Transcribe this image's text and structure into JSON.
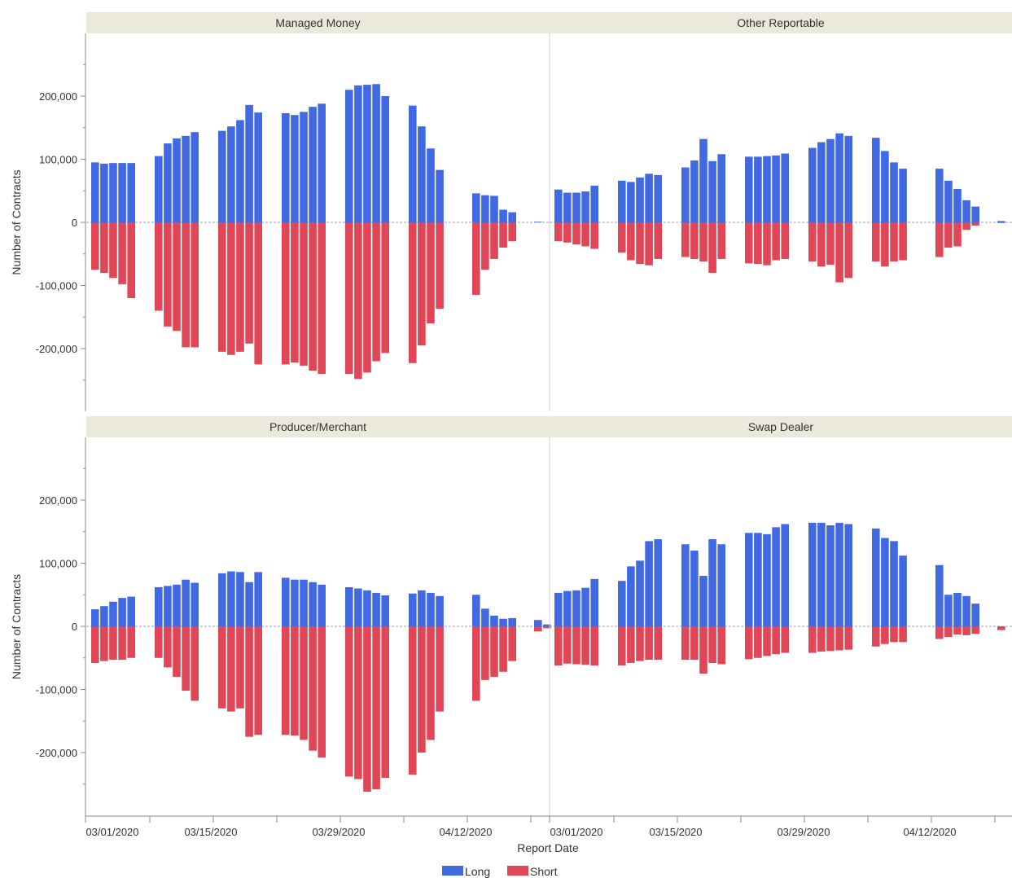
{
  "chart_data": {
    "type": "bar",
    "xlabel": "Report Date",
    "ylabel": "Number of Contracts",
    "ylim": [
      -300000,
      300000
    ],
    "y_ticks": [
      200000,
      100000,
      0,
      -100000,
      -200000
    ],
    "y_tick_labels": [
      "200,000",
      "100,000",
      "0",
      "-100,000",
      "-200,000"
    ],
    "x_tick_labels": [
      "03/01/2020",
      "03/15/2020",
      "03/29/2020",
      "04/12/2020"
    ],
    "legend": {
      "placement": "bottom-center",
      "entries": [
        "Long",
        "Short"
      ]
    },
    "colors": {
      "Long": "#4169e1",
      "Short": "#e04656",
      "header": "#ebe8dc",
      "zero_line": "#9aa0aa"
    },
    "panels": [
      {
        "title": "Managed Money",
        "groups": [
          {
            "long": [
              95000,
              93000,
              94000,
              94000,
              94000
            ],
            "short": [
              -75000,
              -80000,
              -88000,
              -98000,
              -120000
            ]
          },
          {
            "long": [
              105000,
              125000,
              133000,
              137000,
              143000
            ],
            "short": [
              -140000,
              -165000,
              -172000,
              -198000,
              -198000
            ]
          },
          {
            "long": [
              145000,
              152000,
              162000,
              186000,
              174000
            ],
            "short": [
              -205000,
              -210000,
              -205000,
              -192000,
              -225000
            ]
          },
          {
            "long": [
              173000,
              170000,
              175000,
              183000,
              188000
            ],
            "short": [
              -225000,
              -222000,
              -227000,
              -235000,
              -240000
            ]
          },
          {
            "long": [
              210000,
              217000,
              218000,
              219000,
              200000
            ],
            "short": [
              -240000,
              -248000,
              -238000,
              -220000,
              -207000
            ]
          },
          {
            "long": [
              185000,
              152000,
              117000,
              83000
            ],
            "short": [
              -223000,
              -195000,
              -160000,
              -137000
            ]
          },
          {
            "long": [
              46000,
              43000,
              42000,
              20000,
              16000
            ],
            "short": [
              -115000,
              -75000,
              -58000,
              -40000,
              -30000
            ]
          },
          {
            "long": [
              1000
            ],
            "short": [
              0
            ]
          }
        ]
      },
      {
        "title": "Other Reportable",
        "groups": [
          {
            "long": [
              52000,
              47000,
              47000,
              49000,
              58000
            ],
            "short": [
              -30000,
              -32000,
              -35000,
              -38000,
              -42000
            ]
          },
          {
            "long": [
              66000,
              64000,
              71000,
              77000,
              75000
            ],
            "short": [
              -48000,
              -60000,
              -66000,
              -68000,
              -58000
            ]
          },
          {
            "long": [
              87000,
              98000,
              132000,
              97000,
              108000
            ],
            "short": [
              -55000,
              -58000,
              -62000,
              -80000,
              -58000
            ]
          },
          {
            "long": [
              104000,
              104000,
              105000,
              106000,
              109000
            ],
            "short": [
              -65000,
              -66000,
              -68000,
              -60000,
              -58000
            ]
          },
          {
            "long": [
              118000,
              127000,
              132000,
              141000,
              137000
            ],
            "short": [
              -62000,
              -70000,
              -67000,
              -95000,
              -88000
            ]
          },
          {
            "long": [
              134000,
              113000,
              95000,
              85000
            ],
            "short": [
              -62000,
              -70000,
              -62000,
              -60000
            ]
          },
          {
            "long": [
              85000,
              66000,
              53000,
              35000,
              25000
            ],
            "short": [
              -55000,
              -40000,
              -38000,
              -12000,
              -5000
            ]
          },
          {
            "long": [
              2000
            ],
            "short": [
              -1000
            ]
          }
        ]
      },
      {
        "title": "Producer/Merchant",
        "groups": [
          {
            "long": [
              27000,
              32000,
              39000,
              45000,
              47000
            ],
            "short": [
              -58000,
              -55000,
              -53000,
              -53000,
              -50000
            ]
          },
          {
            "long": [
              62000,
              64000,
              66000,
              74000,
              69000
            ],
            "short": [
              -50000,
              -65000,
              -80000,
              -102000,
              -118000
            ]
          },
          {
            "long": [
              84000,
              87000,
              86000,
              70000,
              86000
            ],
            "short": [
              -130000,
              -135000,
              -130000,
              -175000,
              -172000
            ]
          },
          {
            "long": [
              77000,
              74000,
              74000,
              70000,
              66000
            ],
            "short": [
              -172000,
              -173000,
              -180000,
              -197000,
              -208000
            ]
          },
          {
            "long": [
              62000,
              60000,
              57000,
              53000,
              49000
            ],
            "short": [
              -238000,
              -242000,
              -262000,
              -258000,
              -240000
            ]
          },
          {
            "long": [
              52000,
              57000,
              53000,
              48000
            ],
            "short": [
              -235000,
              -200000,
              -180000,
              -135000
            ]
          },
          {
            "long": [
              50000,
              28000,
              17000,
              12000,
              13000
            ],
            "short": [
              -118000,
              -85000,
              -80000,
              -72000,
              -55000
            ]
          },
          {
            "long": [
              10000,
              3000
            ],
            "short": [
              -8000,
              -3000
            ]
          }
        ]
      },
      {
        "title": "Swap Dealer",
        "groups": [
          {
            "long": [
              53000,
              56000,
              57000,
              61000,
              75000
            ],
            "short": [
              -62000,
              -59000,
              -60000,
              -61000,
              -62000
            ]
          },
          {
            "long": [
              72000,
              95000,
              104000,
              135000,
              138000
            ],
            "short": [
              -62000,
              -58000,
              -55000,
              -53000,
              -53000
            ]
          },
          {
            "long": [
              130000,
              120000,
              80000,
              138000,
              130000
            ],
            "short": [
              -53000,
              -53000,
              -75000,
              -58000,
              -60000
            ]
          },
          {
            "long": [
              148000,
              148000,
              146000,
              157000,
              162000
            ],
            "short": [
              -52000,
              -50000,
              -47000,
              -44000,
              -42000
            ]
          },
          {
            "long": [
              164000,
              164000,
              160000,
              164000,
              162000
            ],
            "short": [
              -42000,
              -40000,
              -39000,
              -38000,
              -37000
            ]
          },
          {
            "long": [
              155000,
              140000,
              135000,
              112000
            ],
            "short": [
              -32000,
              -28000,
              -25000,
              -25000
            ]
          },
          {
            "long": [
              97000,
              50000,
              53000,
              48000,
              36000
            ],
            "short": [
              -20000,
              -17000,
              -13000,
              -14000,
              -12000
            ]
          },
          {
            "long": [
              0
            ],
            "short": [
              -6000
            ]
          }
        ]
      }
    ]
  }
}
